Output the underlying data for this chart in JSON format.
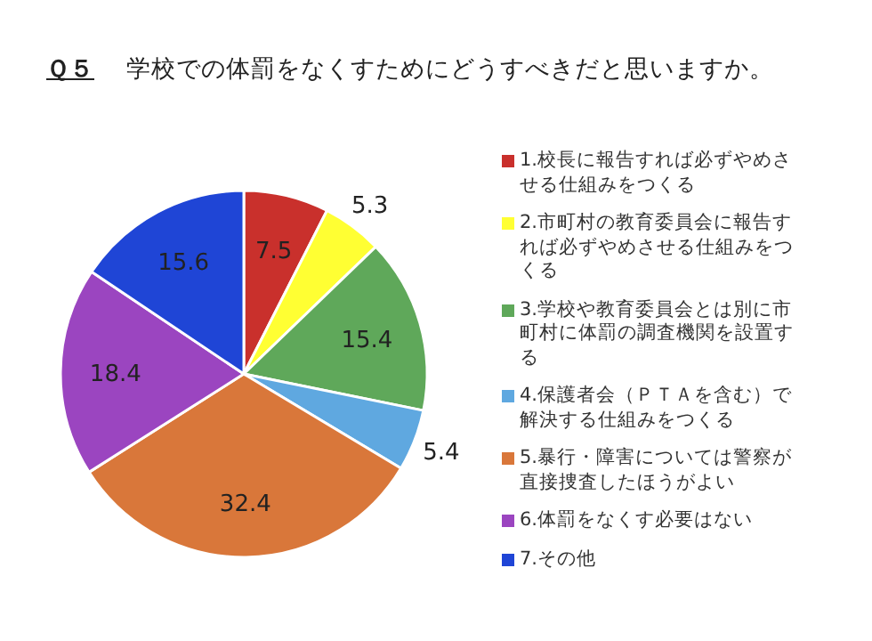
{
  "chart_data": {
    "type": "pie",
    "title": "**Ｑ５**　学校での体罰をなくすためにどうすべきだと思いますか。",
    "categories": [
      "1.校長に報告すれば必ずやめさせる仕組みをつくる",
      "2.市町村の教育委員会に報告すれば必ずやめさせる仕組みをつくる",
      "3.学校や教育委員会とは別に市町村に体罰の調査機関を設置する",
      "4.保護者会（ＰＴＡを含む）で解決する仕組みをつくる",
      "5.暴行・障害については警察が直接捜査したほうがよい",
      "6.体罰をなくす必要はない",
      "7.その他"
    ],
    "values": [
      7.5,
      5.3,
      15.4,
      5.4,
      32.4,
      18.4,
      15.6
    ],
    "colors": [
      "#c9302c",
      "#ffff33",
      "#5fa85a",
      "#5fa8e0",
      "#d9773a",
      "#9b45c0",
      "#1f45d6"
    ],
    "data_labels": true,
    "legend": "right"
  }
}
